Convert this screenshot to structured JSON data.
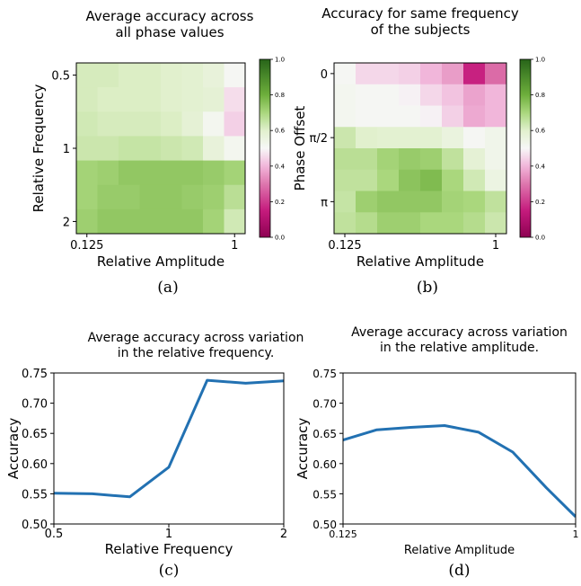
{
  "colors": {
    "line": "#2271b2",
    "chance_line": "#000000",
    "cmap_low": "#8e0152",
    "cmap_mid": "#f7f7f7",
    "cmap_high": "#276419"
  },
  "chart_data": [
    {
      "id": "a",
      "type": "heatmap",
      "title_lines": [
        "Average accuracy across",
        "all phase values"
      ],
      "xlabel": "Relative Amplitude",
      "ylabel": "Relative Frequency",
      "x_tick_labels": [
        {
          "col": 0,
          "label": "0.125"
        },
        {
          "col": 7,
          "label": "1"
        }
      ],
      "y_tick_labels": [
        {
          "row": 0,
          "label": "0.5"
        },
        {
          "row": 3,
          "label": "1"
        },
        {
          "row": 6,
          "label": "2"
        }
      ],
      "colorbar": {
        "min": 0.0,
        "max": 1.0,
        "ticks": [
          "0.0",
          "0.2",
          "0.4",
          "0.6",
          "0.8",
          "1.0"
        ]
      },
      "values": [
        [
          0.62,
          0.62,
          0.61,
          0.61,
          0.6,
          0.59,
          0.57,
          0.51
        ],
        [
          0.62,
          0.61,
          0.61,
          0.61,
          0.6,
          0.59,
          0.58,
          0.46
        ],
        [
          0.63,
          0.62,
          0.62,
          0.62,
          0.61,
          0.58,
          0.52,
          0.44
        ],
        [
          0.64,
          0.64,
          0.65,
          0.65,
          0.64,
          0.63,
          0.57,
          0.52
        ],
        [
          0.71,
          0.72,
          0.74,
          0.74,
          0.74,
          0.74,
          0.73,
          0.71
        ],
        [
          0.71,
          0.73,
          0.73,
          0.74,
          0.74,
          0.73,
          0.72,
          0.67
        ],
        [
          0.72,
          0.74,
          0.74,
          0.74,
          0.74,
          0.74,
          0.71,
          0.63
        ]
      ],
      "caption": "(a)"
    },
    {
      "id": "b",
      "type": "heatmap",
      "title_lines": [
        "Accuracy for same frequency",
        "of the subjects"
      ],
      "xlabel": "Relative Amplitude",
      "ylabel": "Phase Offset",
      "x_tick_labels": [
        {
          "col": 0,
          "label": "0.125"
        },
        {
          "col": 7,
          "label": "1"
        }
      ],
      "y_tick_labels": [
        {
          "row": 0,
          "label": "0"
        },
        {
          "row": 3,
          "label": "π/2"
        },
        {
          "row": 6,
          "label": "π"
        }
      ],
      "colorbar": {
        "min": 0.0,
        "max": 1.0,
        "ticks": [
          "0.0",
          "0.2",
          "0.4",
          "0.6",
          "0.8",
          "1.0"
        ]
      },
      "values": [
        [
          0.51,
          0.45,
          0.45,
          0.44,
          0.4,
          0.36,
          0.16,
          0.28
        ],
        [
          0.52,
          0.51,
          0.51,
          0.49,
          0.45,
          0.42,
          0.37,
          0.4
        ],
        [
          0.52,
          0.51,
          0.51,
          0.51,
          0.49,
          0.44,
          0.38,
          0.4
        ],
        [
          0.64,
          0.6,
          0.59,
          0.59,
          0.59,
          0.56,
          0.51,
          0.53
        ],
        [
          0.67,
          0.67,
          0.71,
          0.73,
          0.72,
          0.66,
          0.58,
          0.53
        ],
        [
          0.66,
          0.66,
          0.7,
          0.75,
          0.77,
          0.7,
          0.63,
          0.55
        ],
        [
          0.65,
          0.72,
          0.74,
          0.74,
          0.74,
          0.71,
          0.7,
          0.66
        ],
        [
          0.66,
          0.68,
          0.72,
          0.72,
          0.7,
          0.7,
          0.68,
          0.64
        ]
      ],
      "caption": "(b)"
    },
    {
      "id": "c",
      "type": "line",
      "title_lines": [
        "Average accuracy across variation",
        "in the relative frequency."
      ],
      "xlabel": "Relative Frequency",
      "ylabel": "Accuracy",
      "x_scale": "log2",
      "xlim": [
        0.5,
        2
      ],
      "x_ticks": [
        {
          "value": 0.5,
          "label": "0.5"
        },
        {
          "value": 1,
          "label": "1"
        },
        {
          "value": 2,
          "label": "2"
        }
      ],
      "ylim": [
        0.5,
        0.75
      ],
      "y_ticks": [
        0.5,
        0.55,
        0.6,
        0.65,
        0.7,
        0.75
      ],
      "y_tick_labels": [
        "0.50",
        "0.55",
        "0.60",
        "0.65",
        "0.70",
        "0.75"
      ],
      "x": [
        0.5,
        0.63,
        0.79,
        1.0,
        1.26,
        1.59,
        2.0
      ],
      "values": [
        0.551,
        0.55,
        0.545,
        0.594,
        0.738,
        0.733,
        0.737
      ],
      "chance_level": 0.5,
      "caption": "(c)"
    },
    {
      "id": "d",
      "type": "line",
      "title_lines": [
        "Average accuracy across variation",
        "in the relative amplitude."
      ],
      "xlabel": "Relative Amplitude",
      "ylabel": "Accuracy",
      "x_scale": "log2",
      "xlim": [
        0.125,
        1
      ],
      "x_ticks": [
        {
          "value": 0.125,
          "label": "0.125"
        },
        {
          "value": 1,
          "label": "1"
        }
      ],
      "ylim": [
        0.5,
        0.75
      ],
      "y_ticks": [
        0.5,
        0.55,
        0.6,
        0.65,
        0.7,
        0.75
      ],
      "y_tick_labels": [
        "0.50",
        "0.55",
        "0.60",
        "0.65",
        "0.70",
        "0.75"
      ],
      "x": [
        0.125,
        0.169,
        0.229,
        0.31,
        0.42,
        0.57,
        0.77,
        1.0
      ],
      "values": [
        0.639,
        0.656,
        0.66,
        0.663,
        0.652,
        0.619,
        0.56,
        0.512
      ],
      "chance_level": 0.5,
      "caption": "(d)"
    }
  ]
}
